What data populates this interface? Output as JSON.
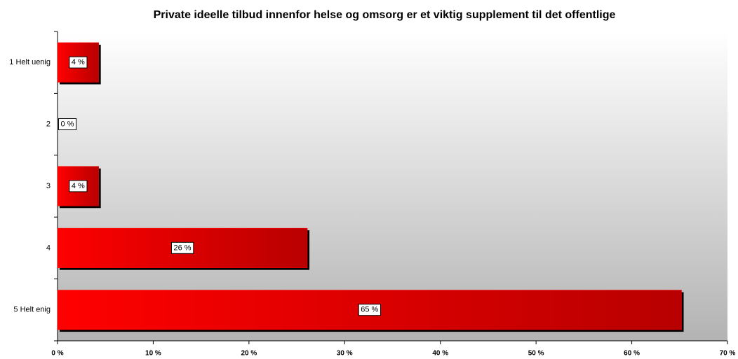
{
  "chart_data": {
    "type": "barh",
    "title": "Private ideelle tilbud innenfor helse og omsorg er et viktig supplement til det offentlige",
    "categories": [
      "1 Helt uenig",
      "2",
      "3",
      "4",
      "5 Helt enig"
    ],
    "values": [
      4.3,
      0,
      4.3,
      26.1,
      65.2
    ],
    "value_labels": [
      "4 %",
      "0 %",
      "4 %",
      "26 %",
      "65 %"
    ],
    "color": "#ff0000",
    "xlim": [
      0,
      70
    ],
    "xticks": [
      {
        "value": 0,
        "label": "0 %"
      },
      {
        "value": 10,
        "label": "10 %"
      },
      {
        "value": 20,
        "label": "20 %"
      },
      {
        "value": 30,
        "label": "30 %"
      },
      {
        "value": 40,
        "label": "40 %"
      },
      {
        "value": 50,
        "label": "50 %"
      },
      {
        "value": 60,
        "label": "60 %"
      },
      {
        "value": 70,
        "label": "70 %"
      }
    ]
  }
}
